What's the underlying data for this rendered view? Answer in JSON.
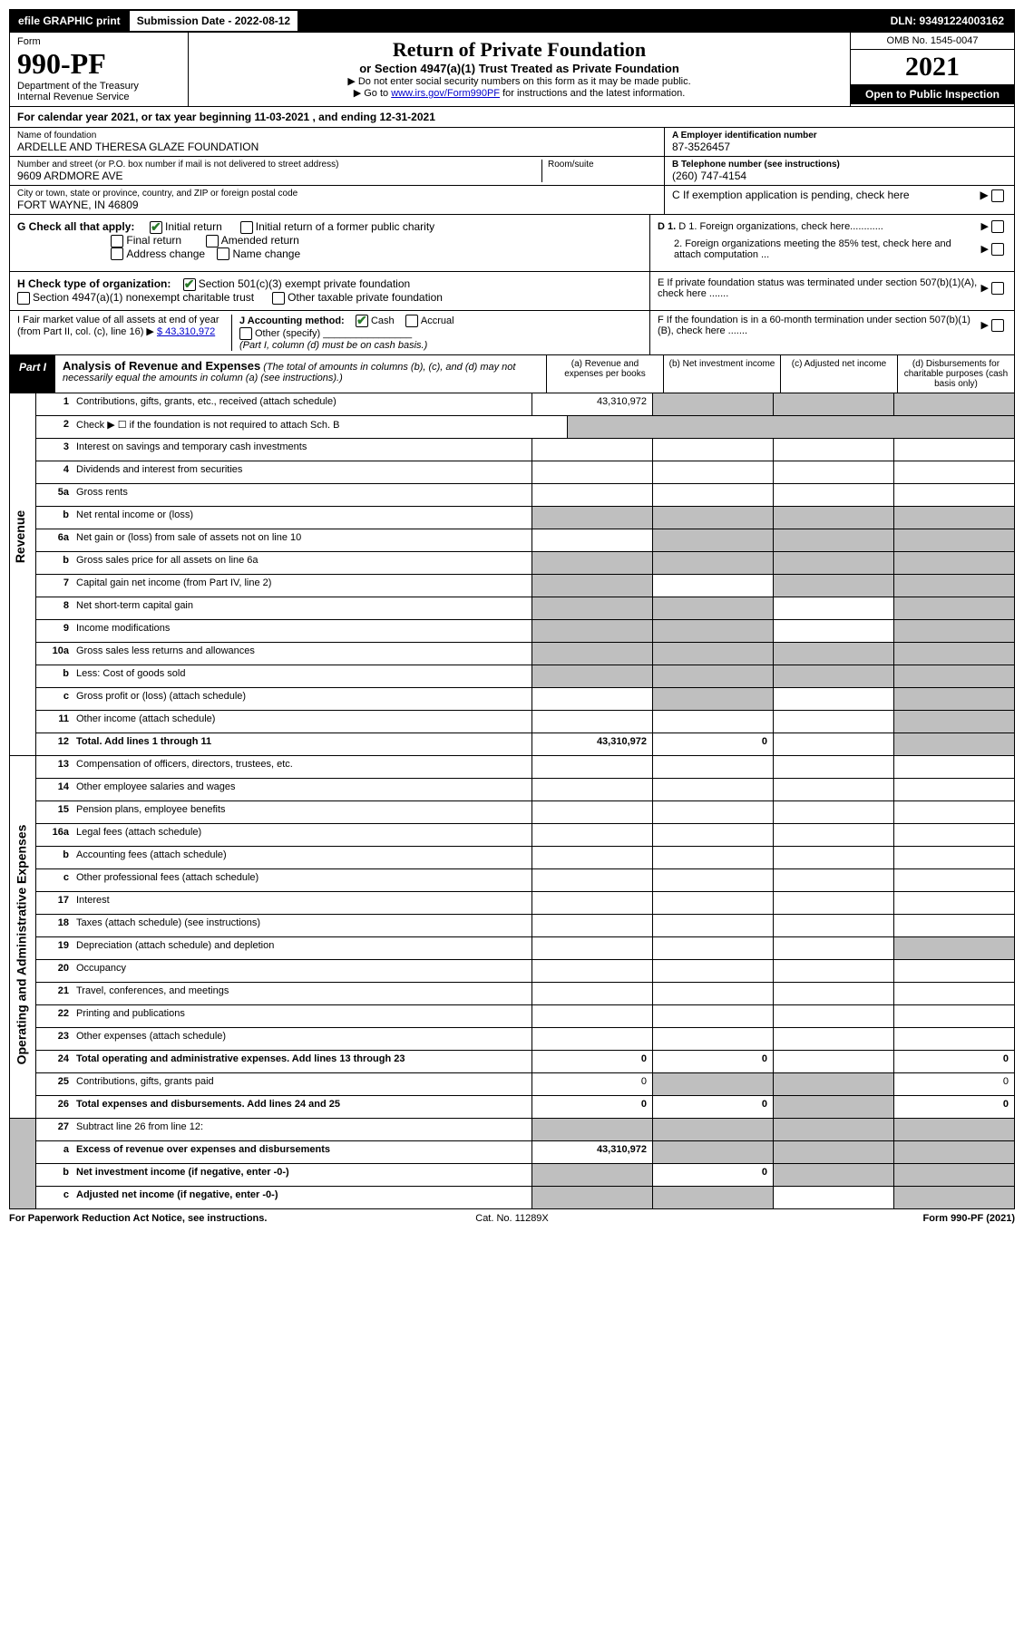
{
  "header": {
    "efile": "efile GRAPHIC print",
    "submission_label": "Submission Date - 2022-08-12",
    "dln": "DLN: 93491224003162"
  },
  "form": {
    "label": "Form",
    "number": "990-PF",
    "dept": "Department of the Treasury",
    "irs": "Internal Revenue Service"
  },
  "title_block": {
    "title": "Return of Private Foundation",
    "subtitle": "or Section 4947(a)(1) Trust Treated as Private Foundation",
    "instr1": "▶ Do not enter social security numbers on this form as it may be made public.",
    "instr2_pre": "▶ Go to ",
    "instr2_link": "www.irs.gov/Form990PF",
    "instr2_post": " for instructions and the latest information."
  },
  "right_box": {
    "omb": "OMB No. 1545-0047",
    "year": "2021",
    "open": "Open to Public Inspection"
  },
  "cal_year": "For calendar year 2021, or tax year beginning 11-03-2021            , and ending 12-31-2021",
  "id": {
    "name_label": "Name of foundation",
    "name": "ARDELLE AND THERESA GLAZE FOUNDATION",
    "addr_label": "Number and street (or P.O. box number if mail is not delivered to street address)",
    "addr": "9609 ARDMORE AVE",
    "room_label": "Room/suite",
    "city_label": "City or town, state or province, country, and ZIP or foreign postal code",
    "city": "FORT WAYNE, IN  46809",
    "a_label": "A Employer identification number",
    "a": "87-3526457",
    "b_label": "B Telephone number (see instructions)",
    "b": "(260) 747-4154",
    "c": "C If exemption application is pending, check here"
  },
  "g": {
    "label": "G Check all that apply:",
    "initial": "Initial return",
    "initial_former": "Initial return of a former public charity",
    "final": "Final return",
    "amended": "Amended return",
    "addr_change": "Address change",
    "name_change": "Name change"
  },
  "h": {
    "label": "H Check type of organization:",
    "sec501": "Section 501(c)(3) exempt private foundation",
    "sec4947": "Section 4947(a)(1) nonexempt charitable trust",
    "other_tax": "Other taxable private foundation"
  },
  "right_checks": {
    "d1": "D 1. Foreign organizations, check here............",
    "d2": "2. Foreign organizations meeting the 85% test, check here and attach computation ...",
    "e": "E  If private foundation status was terminated under section 507(b)(1)(A), check here .......",
    "f": "F  If the foundation is in a 60-month termination under section 507(b)(1)(B), check here ......."
  },
  "i": {
    "label": "I Fair market value of all assets at end of year (from Part II, col. (c), line 16) ▶",
    "value": "$  43,310,972"
  },
  "j": {
    "label": "J Accounting method:",
    "cash": "Cash",
    "accrual": "Accrual",
    "other": "Other (specify)",
    "note": "(Part I, column (d) must be on cash basis.)"
  },
  "part1": {
    "badge": "Part I",
    "title": "Analysis of Revenue and Expenses",
    "note": "(The total of amounts in columns (b), (c), and (d) may not necessarily equal the amounts in column (a) (see instructions).)",
    "cols": {
      "a": "(a) Revenue and expenses per books",
      "b": "(b) Net investment income",
      "c": "(c) Adjusted net income",
      "d": "(d) Disbursements for charitable purposes (cash basis only)"
    }
  },
  "sides": {
    "rev": "Revenue",
    "opex": "Operating and Administrative Expenses"
  },
  "rows": [
    {
      "n": "1",
      "d": "Contributions, gifts, grants, etc., received (attach schedule)",
      "a": "43,310,972",
      "shade_bcd": true
    },
    {
      "n": "2",
      "d": "Check ▶ ☐ if the foundation is not required to attach Sch. B",
      "no_cells": true
    },
    {
      "n": "3",
      "d": "Interest on savings and temporary cash investments"
    },
    {
      "n": "4",
      "d": "Dividends and interest from securities"
    },
    {
      "n": "5a",
      "d": "Gross rents"
    },
    {
      "n": "b",
      "d": "Net rental income or (loss)",
      "shade_all": true,
      "inline": true
    },
    {
      "n": "6a",
      "d": "Net gain or (loss) from sale of assets not on line 10",
      "shade_bcd": true
    },
    {
      "n": "b",
      "d": "Gross sales price for all assets on line 6a",
      "shade_all": true,
      "inline": true
    },
    {
      "n": "7",
      "d": "Capital gain net income (from Part IV, line 2)",
      "shade_a": true,
      "shade_cd": true
    },
    {
      "n": "8",
      "d": "Net short-term capital gain",
      "shade_ab": true,
      "shade_d": true
    },
    {
      "n": "9",
      "d": "Income modifications",
      "shade_ab": true,
      "shade_d": true
    },
    {
      "n": "10a",
      "d": "Gross sales less returns and allowances",
      "shade_all": true,
      "inline": true
    },
    {
      "n": "b",
      "d": "Less: Cost of goods sold",
      "shade_all": true,
      "inline": true
    },
    {
      "n": "c",
      "d": "Gross profit or (loss) (attach schedule)",
      "shade_bd": true
    },
    {
      "n": "11",
      "d": "Other income (attach schedule)",
      "shade_d": true
    },
    {
      "n": "12",
      "d": "Total. Add lines 1 through 11",
      "a": "43,310,972",
      "b_val": "0",
      "shade_d": true,
      "bold": true
    }
  ],
  "rows2": [
    {
      "n": "13",
      "d": "Compensation of officers, directors, trustees, etc."
    },
    {
      "n": "14",
      "d": "Other employee salaries and wages"
    },
    {
      "n": "15",
      "d": "Pension plans, employee benefits"
    },
    {
      "n": "16a",
      "d": "Legal fees (attach schedule)"
    },
    {
      "n": "b",
      "d": "Accounting fees (attach schedule)"
    },
    {
      "n": "c",
      "d": "Other professional fees (attach schedule)"
    },
    {
      "n": "17",
      "d": "Interest"
    },
    {
      "n": "18",
      "d": "Taxes (attach schedule) (see instructions)"
    },
    {
      "n": "19",
      "d": "Depreciation (attach schedule) and depletion",
      "shade_d": true
    },
    {
      "n": "20",
      "d": "Occupancy"
    },
    {
      "n": "21",
      "d": "Travel, conferences, and meetings"
    },
    {
      "n": "22",
      "d": "Printing and publications"
    },
    {
      "n": "23",
      "d": "Other expenses (attach schedule)"
    },
    {
      "n": "24",
      "d": "Total operating and administrative expenses. Add lines 13 through 23",
      "a": "0",
      "b_val": "0",
      "d_val": "0",
      "bold": true
    },
    {
      "n": "25",
      "d": "Contributions, gifts, grants paid",
      "a": "0",
      "shade_bc": true,
      "d_val": "0"
    },
    {
      "n": "26",
      "d": "Total expenses and disbursements. Add lines 24 and 25",
      "a": "0",
      "b_val": "0",
      "shade_c": true,
      "d_val": "0",
      "bold": true
    }
  ],
  "rows3": [
    {
      "n": "27",
      "d": "Subtract line 26 from line 12:",
      "shade_all": true
    },
    {
      "n": "a",
      "d": "Excess of revenue over expenses and disbursements",
      "a": "43,310,972",
      "shade_bcd": true,
      "bold": true
    },
    {
      "n": "b",
      "d": "Net investment income (if negative, enter -0-)",
      "shade_a": true,
      "b_val": "0",
      "shade_cd": true,
      "bold": true
    },
    {
      "n": "c",
      "d": "Adjusted net income (if negative, enter -0-)",
      "shade_ab": true,
      "shade_d": true,
      "bold": true
    }
  ],
  "footer": {
    "left": "For Paperwork Reduction Act Notice, see instructions.",
    "center": "Cat. No. 11289X",
    "right": "Form 990-PF (2021)"
  }
}
